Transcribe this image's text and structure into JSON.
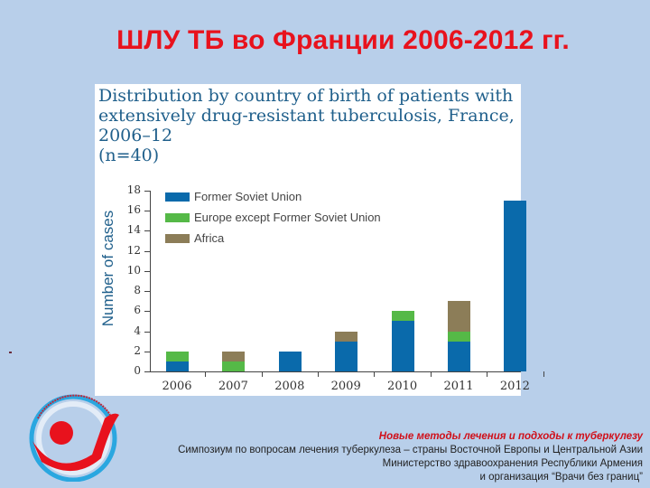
{
  "slide": {
    "title": "ШЛУ ТБ во Франции 2006-2012 гг.",
    "footer": {
      "subtitle": "Новые методы лечения и подходы к туберкулезу",
      "line1": "Симпозиум по вопросам лечения туберкулеза – страны Восточной Европы и Центральной Азии",
      "line2": "Министерство здравоохранения Республики Армения",
      "line3": "и организация “Врачи без границ”"
    },
    "logo": "tb-symposium-logo"
  },
  "colors": {
    "background": "#b8cfea",
    "title": "#e8121d",
    "former_soviet_union": "#0a6aab",
    "europe_except_fsu": "#55b947",
    "africa": "#8c7d58"
  },
  "chart_data": {
    "type": "bar",
    "stacked": true,
    "title": "Distribution by country of birth of patients with extensively drug-resistant tuberculosis, France, 2006–12 (n=40)",
    "title_lines": [
      "Distribution by country of birth of patients with",
      "extensively drug-resistant tuberculosis, France, 2006–12",
      "(n=40)"
    ],
    "xlabel": "",
    "ylabel": "Number of cases",
    "ylim": [
      0,
      18
    ],
    "yticks": [
      0,
      2,
      4,
      6,
      8,
      10,
      12,
      14,
      16,
      18
    ],
    "categories": [
      "2006",
      "2007",
      "2008",
      "2009",
      "2010",
      "2011",
      "2012"
    ],
    "series": [
      {
        "name": "Former Soviet Union",
        "color": "#0a6aab",
        "values": [
          1,
          0,
          2,
          3,
          5,
          3,
          17
        ]
      },
      {
        "name": "Europe except Former Soviet Union",
        "color": "#55b947",
        "values": [
          1,
          1,
          0,
          0,
          1,
          1,
          0
        ]
      },
      {
        "name": "Africa",
        "color": "#8c7d58",
        "values": [
          0,
          1,
          0,
          1,
          0,
          3,
          0
        ]
      }
    ],
    "legend_position": "top-left inside plot",
    "grid": false
  }
}
